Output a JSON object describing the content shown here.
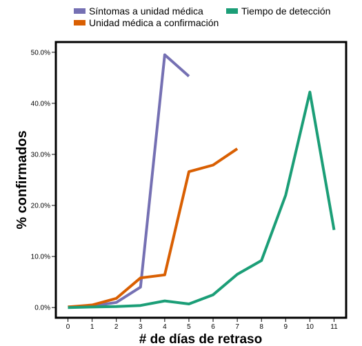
{
  "chart_data": {
    "type": "line",
    "title": "",
    "xlabel": "# de días de retraso",
    "ylabel": "% confirmados",
    "x": [
      0,
      1,
      2,
      3,
      4,
      5,
      6,
      7,
      8,
      9,
      10,
      11
    ],
    "x_tick_labels": [
      "0",
      "1",
      "2",
      "3",
      "4",
      "5",
      "6",
      "7",
      "8",
      "9",
      "10",
      "11"
    ],
    "y_ticks": [
      0,
      10,
      20,
      30,
      40,
      50
    ],
    "y_tick_labels": [
      "0.0%",
      "10.0%",
      "20.0%",
      "30.0%",
      "40.0%",
      "50.0%"
    ],
    "xlim": [
      -0.5,
      11.5
    ],
    "ylim": [
      -2,
      52
    ],
    "grid": false,
    "legend_position": "top",
    "series": [
      {
        "name": "Síntomas a unidad médica",
        "color": "#7570b3",
        "x": [
          0,
          1,
          2,
          3,
          4,
          5
        ],
        "values": [
          0.1,
          0.3,
          1.0,
          4.0,
          49.5,
          45.3
        ]
      },
      {
        "name": "Unidad médica a confirmación",
        "color": "#d95f02",
        "x": [
          0,
          1,
          2,
          3,
          4,
          5,
          6,
          7
        ],
        "values": [
          0.1,
          0.5,
          1.8,
          5.8,
          6.4,
          26.6,
          27.9,
          31.1
        ]
      },
      {
        "name": "Tiempo de detección",
        "color": "#1b9e77",
        "x": [
          0,
          1,
          2,
          3,
          4,
          5,
          6,
          7,
          8,
          9,
          10,
          11
        ],
        "values": [
          0.0,
          0.1,
          0.2,
          0.4,
          1.3,
          0.7,
          2.5,
          6.5,
          9.2,
          22.0,
          42.2,
          15.2
        ]
      }
    ]
  }
}
